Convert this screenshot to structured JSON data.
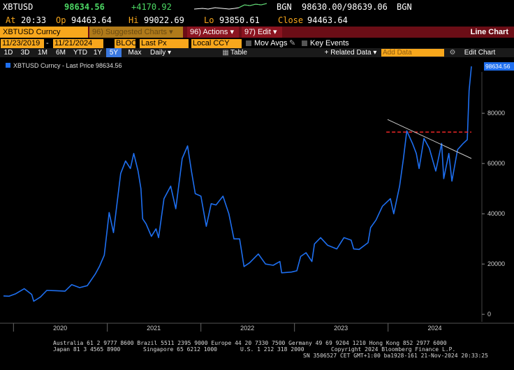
{
  "quote": {
    "ticker": "XBTUSD",
    "last": "98634.56",
    "change": "+4170.92",
    "source": "BGN",
    "bid_ask": "98630.00/98639.06",
    "source2": "BGN",
    "at_label": "At",
    "time": "20:33",
    "open_label": "Op",
    "open": "94463.64",
    "high_label": "Hi",
    "high": "99022.69",
    "low_label": "Lo",
    "low": "93850.61",
    "close_label": "Close",
    "close": "94463.64"
  },
  "menubar": {
    "security": "XBTUSD Curncy",
    "suggested": "96) Suggested Charts",
    "actions": "96) Actions",
    "edit": "97) Edit",
    "title": "Line Chart",
    "arrow": "▾"
  },
  "params": {
    "start_date": "11/23/2019",
    "separator": "-",
    "end_date": "11/21/2024",
    "source": "BLOOI",
    "field": "Last Px",
    "currency": "Local CCY",
    "mov_avgs": "Mov Avgs",
    "key_events": "Key Events"
  },
  "ranges": {
    "buttons": [
      "1D",
      "3D",
      "1M",
      "6M",
      "YTD",
      "1Y",
      "5Y",
      "Max"
    ],
    "active": "5Y",
    "frequency": "Daily",
    "table": "Table",
    "related": "+ Related Data",
    "add_data": "Add Data",
    "edit_chart": "Edit Chart",
    "arrow": "▾"
  },
  "chart_data": {
    "type": "line",
    "legend": "XBTUSD Curncy - Last Price 98634.56",
    "last_value_label": "98634.56",
    "ylim": [
      -3000,
      102000
    ],
    "yticks": [
      0,
      20000,
      40000,
      60000,
      80000
    ],
    "ytick_labels": [
      "0",
      "20000",
      "40000",
      "60000",
      "80000"
    ],
    "xticks": [
      "2020",
      "2021",
      "2022",
      "2023",
      "2024"
    ],
    "xlim": [
      "2019-11-23",
      "2024-11-21"
    ],
    "colors": {
      "line": "#1e6ff0",
      "support": "#ff2a2a",
      "trend": "#cccccc",
      "label_bg": "#1e6ff0"
    },
    "series": [
      {
        "x": [
          "2019-11-23",
          "2019-12-15",
          "2020-01-10",
          "2020-02-12",
          "2020-03-12",
          "2020-03-20",
          "2020-04-15",
          "2020-05-10",
          "2020-06-15",
          "2020-07-20",
          "2020-08-15",
          "2020-09-15",
          "2020-10-15",
          "2020-11-15",
          "2020-12-01",
          "2020-12-20",
          "2021-01-08",
          "2021-01-25",
          "2021-02-10",
          "2021-02-22",
          "2021-03-13",
          "2021-04-01",
          "2021-04-14",
          "2021-05-01",
          "2021-05-12",
          "2021-05-19",
          "2021-06-01",
          "2021-06-22",
          "2021-07-10",
          "2021-07-20",
          "2021-08-10",
          "2021-09-05",
          "2021-09-25",
          "2021-10-20",
          "2021-11-10",
          "2021-11-25",
          "2021-12-10",
          "2022-01-01",
          "2022-01-22",
          "2022-02-10",
          "2022-03-01",
          "2022-03-28",
          "2022-04-20",
          "2022-05-10",
          "2022-06-01",
          "2022-06-18",
          "2022-07-10",
          "2022-08-13",
          "2022-09-10",
          "2022-10-10",
          "2022-11-05",
          "2022-11-12",
          "2022-12-20",
          "2023-01-10",
          "2023-01-25",
          "2023-02-15",
          "2023-03-10",
          "2023-03-20",
          "2023-04-13",
          "2023-05-10",
          "2023-06-15",
          "2023-07-13",
          "2023-08-10",
          "2023-08-20",
          "2023-09-10",
          "2023-10-15",
          "2023-10-25",
          "2023-11-15",
          "2023-12-10",
          "2024-01-10",
          "2024-01-23",
          "2024-02-15",
          "2024-03-01",
          "2024-03-14",
          "2024-04-05",
          "2024-04-20",
          "2024-05-01",
          "2024-05-20",
          "2024-06-10",
          "2024-07-05",
          "2024-07-28",
          "2024-08-05",
          "2024-08-25",
          "2024-09-06",
          "2024-09-28",
          "2024-10-20",
          "2024-11-05",
          "2024-11-12",
          "2024-11-21"
        ],
        "y": [
          7300,
          7200,
          8200,
          10200,
          7900,
          5200,
          6900,
          9500,
          9400,
          9200,
          11800,
          10600,
          11400,
          16000,
          19000,
          23500,
          40500,
          32500,
          46000,
          56000,
          61000,
          58000,
          64000,
          57000,
          50000,
          38000,
          36000,
          31000,
          34000,
          30500,
          46000,
          51000,
          42000,
          62000,
          67000,
          57000,
          48000,
          47000,
          35000,
          44000,
          43500,
          47000,
          40000,
          30000,
          30000,
          19000,
          20500,
          24000,
          20000,
          19500,
          21000,
          16500,
          16800,
          17300,
          23000,
          24500,
          21000,
          28000,
          30500,
          27500,
          26000,
          30500,
          29500,
          26000,
          25800,
          28500,
          34500,
          37500,
          43000,
          46000,
          40000,
          51000,
          62000,
          73000,
          68000,
          64000,
          58000,
          70000,
          66000,
          57000,
          68000,
          54000,
          64000,
          53000,
          65500,
          68000,
          69500,
          89000,
          98634.56
        ]
      }
    ],
    "support_y": 72500,
    "trendline": {
      "x1": "2023-12-30",
      "y1": 77500,
      "x2": "2024-11-21",
      "y2": 62000
    }
  },
  "footer": {
    "line1": "Australia 61 2 9777 8600 Brazil 5511 2395 9000 Europe 44 20 7330 7500 Germany 49 69 9204 1210 Hong Kong 852 2977 6000",
    "line2a": "Japan 81 3 4565 8900",
    "line2b": "Singapore 65 6212 1000",
    "line2c": "U.S. 1 212 318 2000",
    "line2d": "Copyright 2024 Bloomberg Finance L.P.",
    "line3": "SN 3506527 CET  GMT+1:00 ba1928-161 21-Nov-2024 20:33:25"
  }
}
